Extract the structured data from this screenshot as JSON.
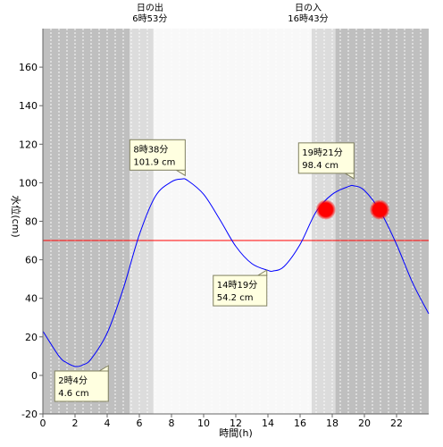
{
  "chart_data": {
    "type": "line",
    "xlabel": "時間(h)",
    "ylabel": "水位(cm)",
    "xlim": [
      0,
      24
    ],
    "ylim": [
      -20,
      180
    ],
    "x_ticks": [
      0,
      2,
      4,
      6,
      8,
      10,
      12,
      14,
      16,
      18,
      20,
      22
    ],
    "y_ticks": [
      -20,
      0,
      20,
      40,
      60,
      80,
      100,
      120,
      140,
      160
    ],
    "grid": {
      "x_minor_step": 0.5,
      "y": false
    },
    "colors": {
      "night": "#bfbfbf",
      "twilight": "#dcdcdc",
      "day": "#f8f8f8",
      "line": "#0000ff",
      "threshold": "#ff0000",
      "marker": "#ff0000",
      "callout_fill": "#ffffe0",
      "callout_border": "#808060"
    },
    "bands": [
      {
        "kind": "night",
        "start": 0,
        "end": 5.4
      },
      {
        "kind": "twilight",
        "start": 5.4,
        "end": 6.88
      },
      {
        "kind": "day",
        "start": 6.88,
        "end": 16.72
      },
      {
        "kind": "twilight",
        "start": 16.72,
        "end": 18.2
      },
      {
        "kind": "night",
        "start": 18.2,
        "end": 24
      }
    ],
    "sun_events": [
      {
        "x": 6.88,
        "label": "日の出",
        "time": "6時53分"
      },
      {
        "x": 16.72,
        "label": "日の入",
        "time": "16時43分"
      }
    ],
    "threshold": 70,
    "series": [
      {
        "x": [
          0,
          1,
          1.5,
          2.07,
          2.5,
          3,
          4,
          5,
          6,
          7,
          8,
          8.63,
          9,
          10,
          11,
          12,
          13,
          14,
          14.32,
          15,
          16,
          17,
          18,
          19,
          19.35,
          20,
          21,
          22,
          23,
          24
        ],
        "y": [
          23,
          10,
          6.5,
          4.6,
          5.5,
          8.5,
          22,
          45,
          73,
          93,
          100.5,
          101.9,
          101.2,
          94,
          81,
          67,
          58,
          54.5,
          54.2,
          56.5,
          68,
          85,
          94,
          98,
          98.4,
          96,
          85,
          68,
          48,
          32
        ]
      }
    ],
    "extremes": [
      {
        "x": 2.07,
        "y": 4.6,
        "time": "2時4分",
        "value": "4.6 cm"
      },
      {
        "x": 8.63,
        "y": 101.9,
        "time": "8時38分",
        "value": "101.9 cm"
      },
      {
        "x": 14.32,
        "y": 54.2,
        "time": "14時19分",
        "value": "54.2 cm"
      },
      {
        "x": 19.35,
        "y": 98.4,
        "time": "19時21分",
        "value": "98.4 cm"
      }
    ],
    "markers": [
      {
        "x": 17.6,
        "y": 86
      },
      {
        "x": 20.95,
        "y": 86
      }
    ]
  }
}
